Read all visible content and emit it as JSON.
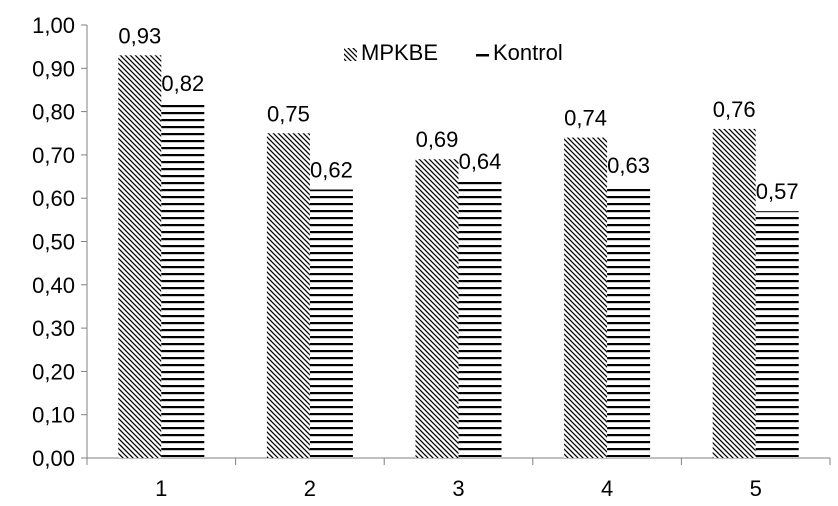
{
  "chart_data": {
    "type": "bar",
    "categories": [
      "1",
      "2",
      "3",
      "4",
      "5"
    ],
    "series": [
      {
        "name": "MPKBE",
        "values": [
          0.93,
          0.75,
          0.69,
          0.74,
          0.76
        ],
        "pattern": "diagonal-hatch"
      },
      {
        "name": "Kontrol",
        "values": [
          0.82,
          0.62,
          0.64,
          0.63,
          0.57
        ],
        "pattern": "horizontal-lines"
      }
    ],
    "data_labels": [
      [
        "0,93",
        "0,75",
        "0,69",
        "0,74",
        "0,76"
      ],
      [
        "0,82",
        "0,62",
        "0,64",
        "0,63",
        "0,57"
      ]
    ],
    "y_ticks": [
      "0,00",
      "0,10",
      "0,20",
      "0,30",
      "0,40",
      "0,50",
      "0,60",
      "0,70",
      "0,80",
      "0,90",
      "1,00"
    ],
    "ylim": [
      0,
      1
    ],
    "grid": false,
    "legend_position": "top-center",
    "title": "",
    "xlabel": "",
    "ylabel": "",
    "colors": {
      "ink": "#000000",
      "background": "#ffffff"
    }
  }
}
